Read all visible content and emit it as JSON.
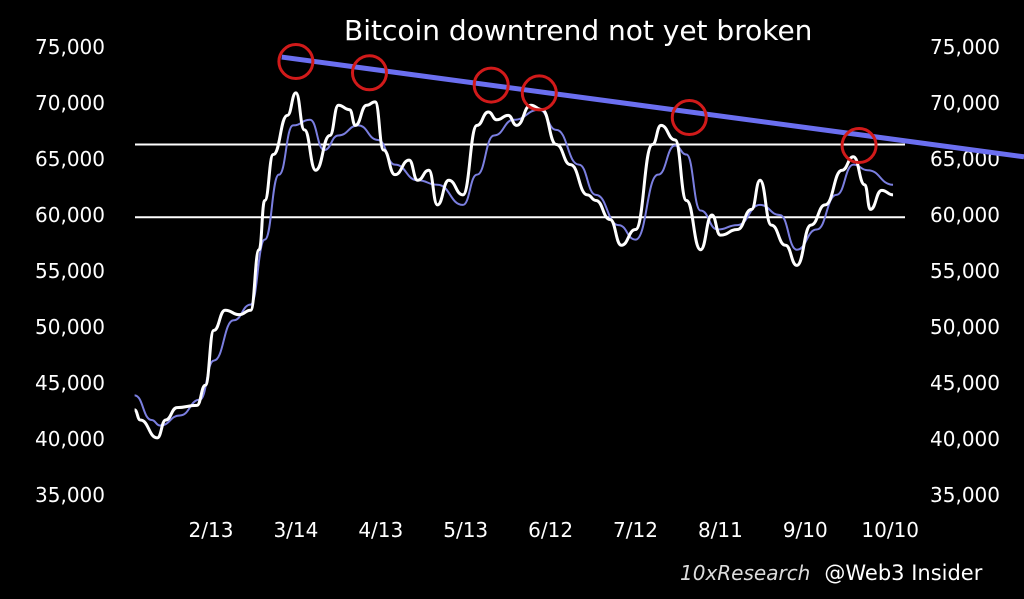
{
  "chart_data": {
    "type": "line",
    "title": "Bitcoin downtrend not yet broken",
    "xlabel": "",
    "ylabel": "",
    "ylim": [
      35000,
      75000
    ],
    "xlim": [
      "2024-01-17",
      "2024-10-15"
    ],
    "y_ticks": [
      35000,
      40000,
      45000,
      50000,
      55000,
      60000,
      65000,
      70000,
      75000
    ],
    "y_tick_labels": [
      "35,000",
      "40,000",
      "45,000",
      "50,000",
      "55,000",
      "60,000",
      "65,000",
      "70,000",
      "75,000"
    ],
    "y_axes": [
      "left",
      "right"
    ],
    "x_ticks": [
      "2024-02-13",
      "2024-03-14",
      "2024-04-13",
      "2024-05-13",
      "2024-06-12",
      "2024-07-12",
      "2024-08-11",
      "2024-09-10",
      "2024-10-10"
    ],
    "x_tick_labels": [
      "2/13",
      "3/14",
      "4/13",
      "5/13",
      "6/12",
      "7/12",
      "8/11",
      "9/10",
      "10/10"
    ],
    "grid": false,
    "series": [
      {
        "style": "price (smoothed)",
        "color": "#ffffff",
        "points": [
          [
            "2024-01-17",
            42600
          ],
          [
            "2024-01-19",
            41700
          ],
          [
            "2024-01-25",
            40100
          ],
          [
            "2024-01-28",
            41700
          ],
          [
            "2024-02-01",
            42800
          ],
          [
            "2024-02-08",
            43000
          ],
          [
            "2024-02-11",
            44800
          ],
          [
            "2024-02-14",
            49700
          ],
          [
            "2024-02-18",
            51500
          ],
          [
            "2024-02-23",
            51100
          ],
          [
            "2024-02-27",
            51500
          ],
          [
            "2024-03-01",
            56900
          ],
          [
            "2024-03-03",
            61300
          ],
          [
            "2024-03-06",
            65400
          ],
          [
            "2024-03-11",
            68900
          ],
          [
            "2024-03-14",
            70900
          ],
          [
            "2024-03-17",
            67600
          ],
          [
            "2024-03-21",
            64000
          ],
          [
            "2024-03-26",
            67100
          ],
          [
            "2024-03-29",
            69800
          ],
          [
            "2024-04-02",
            69400
          ],
          [
            "2024-04-04",
            68000
          ],
          [
            "2024-04-08",
            69800
          ],
          [
            "2024-04-11",
            70100
          ],
          [
            "2024-04-14",
            65800
          ],
          [
            "2024-04-18",
            63600
          ],
          [
            "2024-04-23",
            64900
          ],
          [
            "2024-04-26",
            63100
          ],
          [
            "2024-04-30",
            64000
          ],
          [
            "2024-05-03",
            60900
          ],
          [
            "2024-05-07",
            63100
          ],
          [
            "2024-05-12",
            61800
          ],
          [
            "2024-05-17",
            68000
          ],
          [
            "2024-05-21",
            69200
          ],
          [
            "2024-05-24",
            68500
          ],
          [
            "2024-05-28",
            68900
          ],
          [
            "2024-05-31",
            68000
          ],
          [
            "2024-06-05",
            69800
          ],
          [
            "2024-06-09",
            69400
          ],
          [
            "2024-06-14",
            66300
          ],
          [
            "2024-06-19",
            64500
          ],
          [
            "2024-06-25",
            61800
          ],
          [
            "2024-06-28",
            61300
          ],
          [
            "2024-07-03",
            59600
          ],
          [
            "2024-07-07",
            57300
          ],
          [
            "2024-07-12",
            58700
          ],
          [
            "2024-07-18",
            66300
          ],
          [
            "2024-07-21",
            68000
          ],
          [
            "2024-07-26",
            66700
          ],
          [
            "2024-07-30",
            61300
          ],
          [
            "2024-08-04",
            56900
          ],
          [
            "2024-08-08",
            60000
          ],
          [
            "2024-08-11",
            58200
          ],
          [
            "2024-08-17",
            58700
          ],
          [
            "2024-08-22",
            60500
          ],
          [
            "2024-08-25",
            63100
          ],
          [
            "2024-08-29",
            59100
          ],
          [
            "2024-09-03",
            57300
          ],
          [
            "2024-09-07",
            55500
          ],
          [
            "2024-09-12",
            59100
          ],
          [
            "2024-09-17",
            60900
          ],
          [
            "2024-09-23",
            64000
          ],
          [
            "2024-09-27",
            65200
          ],
          [
            "2024-10-01",
            62700
          ],
          [
            "2024-10-03",
            60500
          ],
          [
            "2024-10-07",
            62200
          ],
          [
            "2024-10-11",
            61800
          ]
        ]
      },
      {
        "style": "moving average",
        "color": "#7b7fe0",
        "points": [
          [
            "2024-01-17",
            43900
          ],
          [
            "2024-01-23",
            41700
          ],
          [
            "2024-01-26",
            41200
          ],
          [
            "2024-02-02",
            42100
          ],
          [
            "2024-02-09",
            43500
          ],
          [
            "2024-02-14",
            47000
          ],
          [
            "2024-02-21",
            50600
          ],
          [
            "2024-02-27",
            52000
          ],
          [
            "2024-03-03",
            57800
          ],
          [
            "2024-03-08",
            63600
          ],
          [
            "2024-03-13",
            68000
          ],
          [
            "2024-03-19",
            68500
          ],
          [
            "2024-03-24",
            65800
          ],
          [
            "2024-03-29",
            67100
          ],
          [
            "2024-04-05",
            68000
          ],
          [
            "2024-04-12",
            66700
          ],
          [
            "2024-04-18",
            64500
          ],
          [
            "2024-04-26",
            63100
          ],
          [
            "2024-05-03",
            62700
          ],
          [
            "2024-05-12",
            60900
          ],
          [
            "2024-05-17",
            63600
          ],
          [
            "2024-05-23",
            67100
          ],
          [
            "2024-05-30",
            68500
          ],
          [
            "2024-06-08",
            69400
          ],
          [
            "2024-06-14",
            67600
          ],
          [
            "2024-06-22",
            64500
          ],
          [
            "2024-06-28",
            61800
          ],
          [
            "2024-07-06",
            59100
          ],
          [
            "2024-07-12",
            57800
          ],
          [
            "2024-07-20",
            63600
          ],
          [
            "2024-07-26",
            66200
          ],
          [
            "2024-07-30",
            65400
          ],
          [
            "2024-08-04",
            60400
          ],
          [
            "2024-08-10",
            58700
          ],
          [
            "2024-08-17",
            59100
          ],
          [
            "2024-08-25",
            60900
          ],
          [
            "2024-09-01",
            60000
          ],
          [
            "2024-09-07",
            56900
          ],
          [
            "2024-09-14",
            58700
          ],
          [
            "2024-09-21",
            61800
          ],
          [
            "2024-09-27",
            64500
          ],
          [
            "2024-10-02",
            64000
          ],
          [
            "2024-10-11",
            62700
          ]
        ]
      }
    ],
    "horizontal_lines": [
      {
        "value": 66300,
        "color": "#ffffff"
      },
      {
        "value": 59800,
        "color": "#ffffff"
      }
    ],
    "trend_line": {
      "color": "#6b6ff0",
      "from": [
        "2024-03-09",
        74100
      ],
      "to": [
        "2024-10-10",
        66800
      ]
    },
    "highlighted_peaks": {
      "color": "#d11a1a",
      "points": [
        [
          "2024-03-14",
          73700
        ],
        [
          "2024-04-09",
          72700
        ],
        [
          "2024-05-22",
          71600
        ],
        [
          "2024-06-08",
          70900
        ],
        [
          "2024-07-31",
          68700
        ],
        [
          "2024-09-29",
          66200
        ]
      ]
    }
  },
  "watermarks": [
    "10xResearch",
    "@Web3 Insider"
  ]
}
